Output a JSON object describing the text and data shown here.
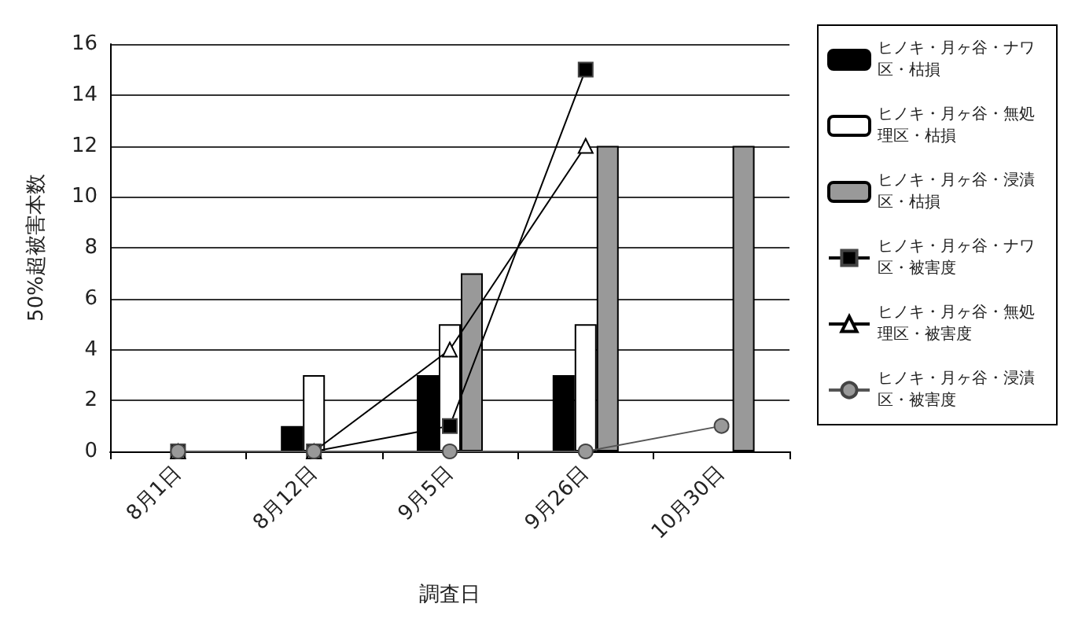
{
  "chart_data": {
    "type": "bar",
    "ylabel": "50%超被害本数",
    "xlabel": "調査日",
    "categories": [
      "8月1日",
      "8月12日",
      "9月5日",
      "9月26日",
      "10月30日"
    ],
    "series": [
      {
        "name": "ヒノキ・月ヶ谷・ナワ区・枯損",
        "color": "#000000",
        "values": [
          0,
          1,
          3,
          3,
          null
        ]
      },
      {
        "name": "ヒノキ・月ヶ谷・無処理区・枯損",
        "color": "#ffffff",
        "values": [
          0,
          3,
          5,
          5,
          null
        ]
      },
      {
        "name": "ヒノキ・月ヶ谷・浸漬区・枯損",
        "color": "#999999",
        "values": [
          0,
          0,
          7,
          12,
          12
        ]
      },
      {
        "name": "ヒノキ・月ヶ谷・ナワ区・被害度",
        "type": "line",
        "marker": "square",
        "color": "#000000",
        "values": [
          0,
          0,
          1,
          15,
          null
        ]
      },
      {
        "name": "ヒノキ・月ヶ谷・無処理区・被害度",
        "type": "line",
        "marker": "triangle",
        "color": "#000000",
        "values": [
          0,
          0,
          4,
          12,
          null
        ]
      },
      {
        "name": "ヒノキ・月ヶ谷・浸漬区・被害度",
        "type": "line",
        "marker": "circle",
        "color": "#999999",
        "values": [
          0,
          0,
          0,
          0,
          1
        ]
      }
    ],
    "ylim": [
      0,
      16
    ],
    "yticks": [
      0,
      2,
      4,
      6,
      8,
      10,
      12,
      14,
      16
    ],
    "grid": "y",
    "legend": "right"
  }
}
